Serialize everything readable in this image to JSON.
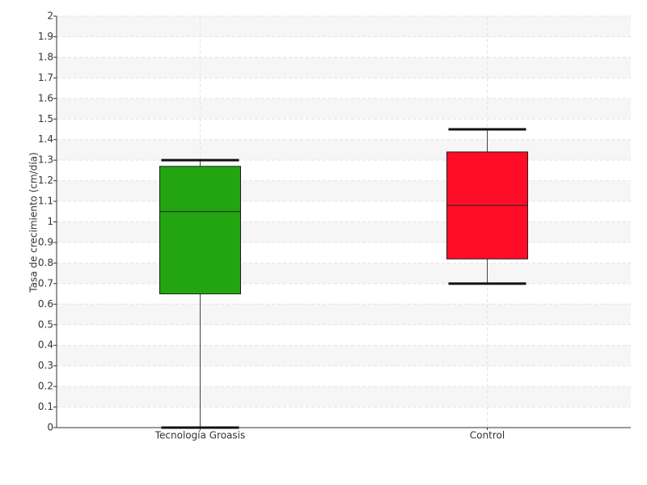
{
  "chart_data": {
    "type": "box",
    "y_label": "Tasa de crecimiento (cm/día)",
    "categories": [
      "Tecnología Groasis",
      "Control"
    ],
    "boxes": [
      {
        "min": 0,
        "q1": 0.65,
        "median": 1.05,
        "q3": 1.27,
        "max": 1.3,
        "color": "#22a510"
      },
      {
        "min": 0.7,
        "q1": 0.82,
        "median": 1.08,
        "q3": 1.34,
        "max": 1.45,
        "color": "#ff0c28"
      }
    ],
    "ylim": [
      0,
      2
    ],
    "yticks": [
      0,
      0.1,
      0.2,
      0.3,
      0.4,
      0.5,
      0.6,
      0.7,
      0.8,
      0.9,
      1,
      1.1,
      1.2,
      1.3,
      1.4,
      1.5,
      1.6,
      1.7,
      1.8,
      1.9,
      2
    ],
    "grid": true
  }
}
